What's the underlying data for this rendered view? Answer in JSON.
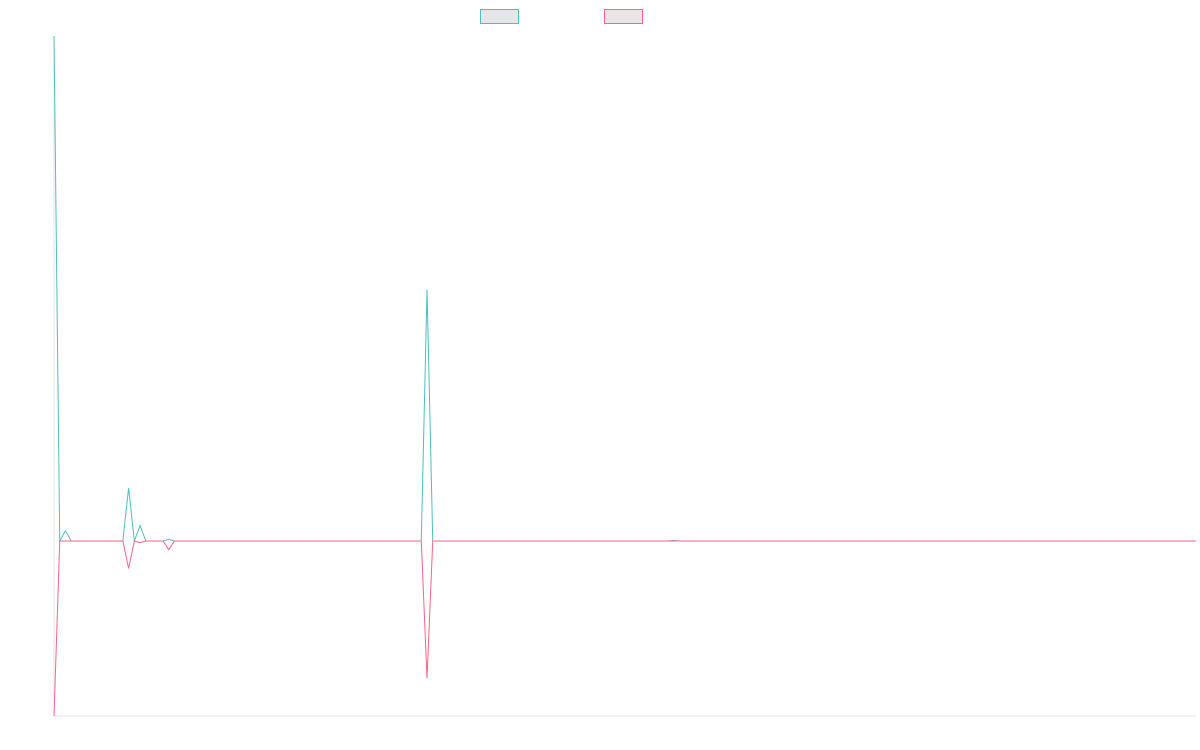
{
  "chart_data": {
    "type": "line",
    "title": "",
    "xlabel": "",
    "ylabel": "",
    "grid": false,
    "legend_position": "top-center",
    "x_count": 200,
    "ylim": [
      -1,
      2
    ],
    "series": [
      {
        "name": "",
        "color": "#4bc0c0",
        "fill": "#e6e6e6",
        "points": [
          [
            0,
            2.95
          ],
          [
            1,
            0.0
          ],
          [
            2,
            0.06
          ],
          [
            3,
            0.0
          ],
          [
            12,
            0.0
          ],
          [
            13,
            0.31
          ],
          [
            14,
            0.0
          ],
          [
            15,
            0.09
          ],
          [
            16,
            0.0
          ],
          [
            19,
            0.0
          ],
          [
            20,
            0.01
          ],
          [
            21,
            0.0
          ],
          [
            64,
            0.0
          ],
          [
            65,
            1.47
          ],
          [
            66,
            0.0
          ],
          [
            107,
            0.0
          ],
          [
            108,
            0.004
          ],
          [
            109,
            0.0
          ],
          [
            199,
            0.0
          ]
        ]
      },
      {
        "name": "",
        "color": "#ff6384",
        "fill": "#e6e6e6",
        "points": [
          [
            0,
            -1.02
          ],
          [
            1,
            0.0
          ],
          [
            12,
            0.0
          ],
          [
            13,
            -0.16
          ],
          [
            14,
            0.0
          ],
          [
            15,
            -0.01
          ],
          [
            16,
            0.0
          ],
          [
            19,
            0.0
          ],
          [
            20,
            -0.05
          ],
          [
            21,
            0.0
          ],
          [
            64,
            0.0
          ],
          [
            65,
            -0.8
          ],
          [
            66,
            0.0
          ],
          [
            199,
            0.0
          ]
        ]
      }
    ]
  }
}
